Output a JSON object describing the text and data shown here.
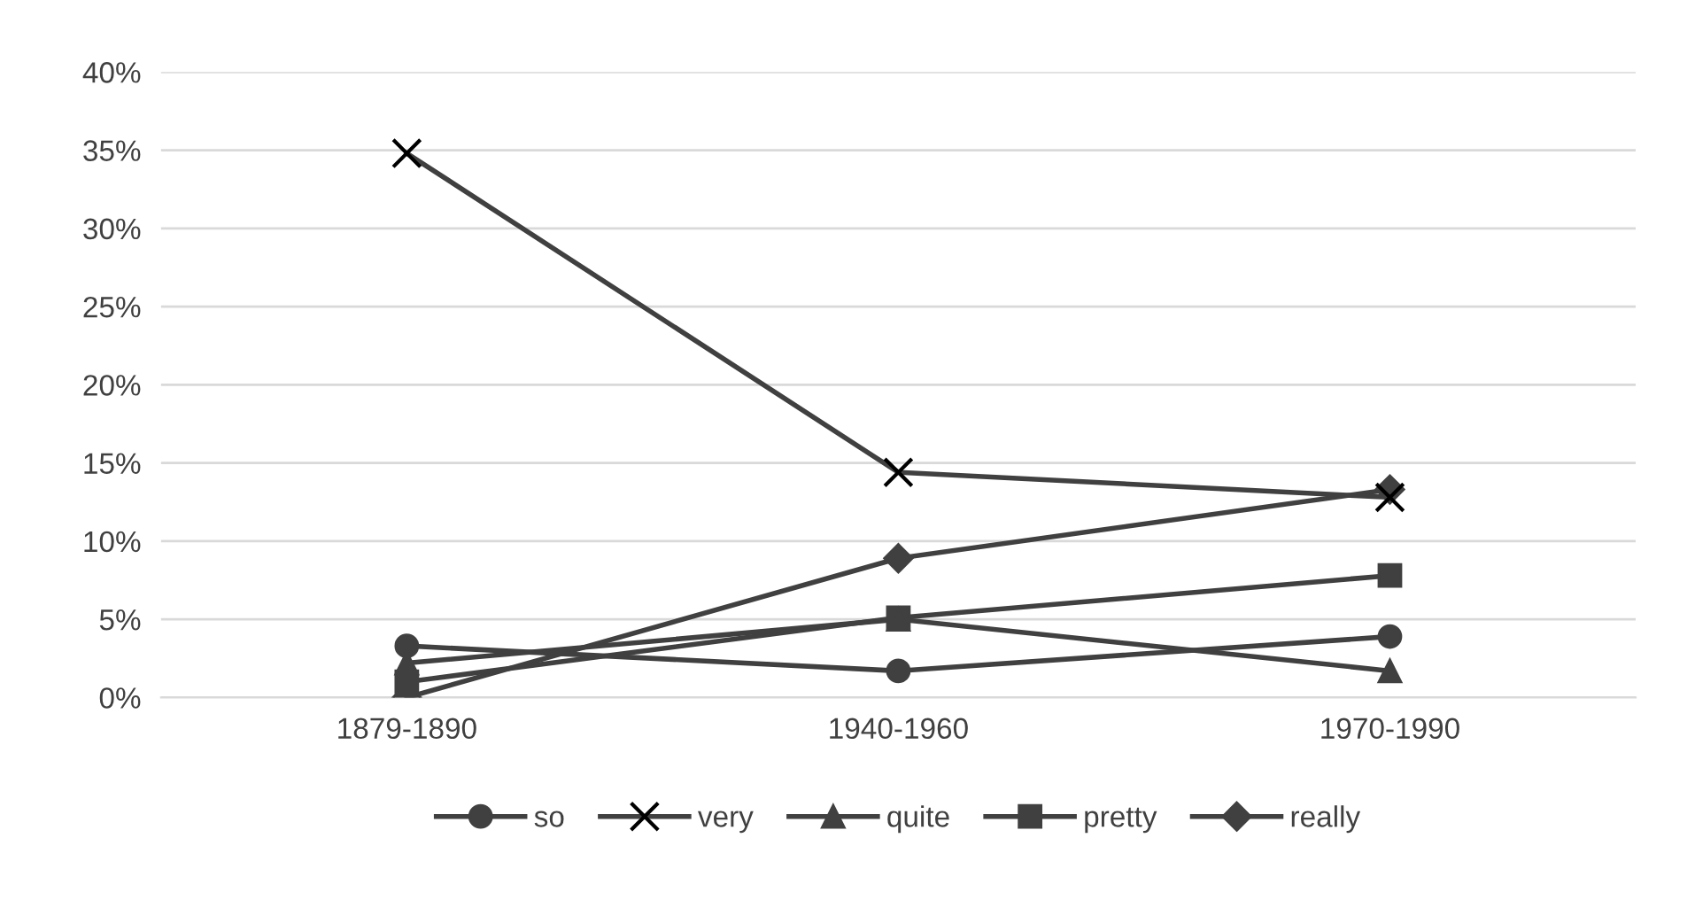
{
  "chart_data": {
    "type": "line",
    "categories": [
      "1879-1890",
      "1940-1960",
      "1970-1990"
    ],
    "series": [
      {
        "name": "so",
        "color": "#404040",
        "marker": "circle",
        "values": [
          3.3,
          1.7,
          3.9
        ]
      },
      {
        "name": "very",
        "color": "#404040",
        "marker": "cross",
        "values": [
          34.8,
          14.4,
          12.8
        ]
      },
      {
        "name": "quite",
        "color": "#404040",
        "marker": "triangle",
        "values": [
          2.2,
          5.0,
          1.7
        ]
      },
      {
        "name": "pretty",
        "color": "#404040",
        "marker": "square",
        "values": [
          1.0,
          5.1,
          7.8
        ]
      },
      {
        "name": "really",
        "color": "#404040",
        "marker": "diamond",
        "values": [
          0.0,
          8.9,
          13.3
        ]
      }
    ],
    "ylim": [
      0,
      40
    ],
    "yticks": [
      {
        "value": 0,
        "label": "0%"
      },
      {
        "value": 5,
        "label": "5%"
      },
      {
        "value": 10,
        "label": "10%"
      },
      {
        "value": 15,
        "label": "15%"
      },
      {
        "value": 20,
        "label": "20%"
      },
      {
        "value": 25,
        "label": "25%"
      },
      {
        "value": 30,
        "label": "30%"
      },
      {
        "value": 35,
        "label": "35%"
      },
      {
        "value": 40,
        "label": "40%"
      }
    ],
    "grid": "y",
    "legend": "bottom",
    "line_style": "solid"
  }
}
